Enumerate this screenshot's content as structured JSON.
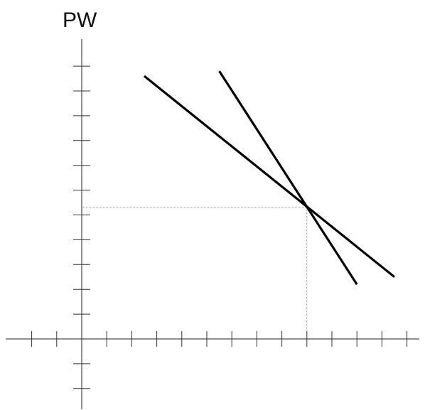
{
  "chart_data": {
    "type": "line",
    "title": "",
    "xlabel": "",
    "ylabel": "PW",
    "xlim": [
      -3,
      13
    ],
    "ylim": [
      -3,
      11
    ],
    "grid": false,
    "legend": "none",
    "x_ticks": [
      -2,
      -1,
      1,
      2,
      3,
      4,
      5,
      6,
      7,
      8,
      9,
      10,
      11,
      12,
      13
    ],
    "y_ticks": [
      -2,
      -1,
      1,
      2,
      3,
      4,
      5,
      6,
      7,
      8,
      9,
      10,
      11
    ],
    "series": [
      {
        "x": [
          2.5,
          12.5
        ],
        "y": [
          10.6,
          2.5
        ],
        "color": "#000000"
      },
      {
        "x": [
          5.5,
          11
        ],
        "y": [
          10.8,
          2.2
        ],
        "color": "#000000"
      }
    ],
    "reference_point": {
      "x": 9,
      "y": 5.3
    }
  }
}
